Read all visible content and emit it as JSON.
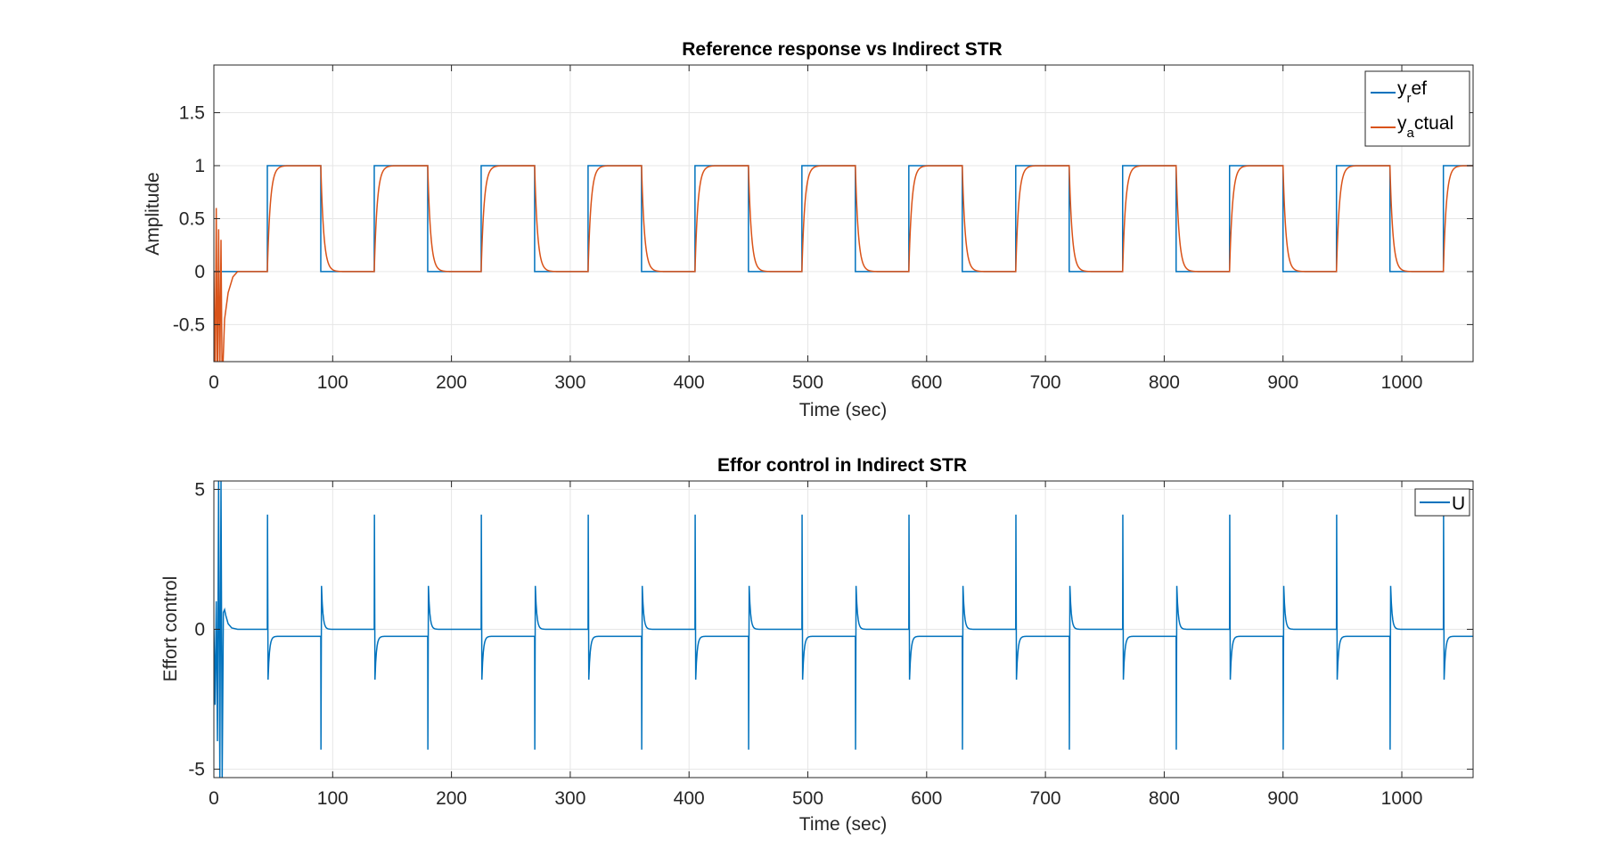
{
  "chart_data": [
    {
      "type": "line",
      "title": "Reference response vs Indirect STR",
      "xlabel": "Time (sec)",
      "ylabel": "Amplitude",
      "xlim": [
        0,
        1060
      ],
      "ylim": [
        -0.85,
        1.95
      ],
      "xticks": [
        0,
        100,
        200,
        300,
        400,
        500,
        600,
        700,
        800,
        900,
        1000
      ],
      "xtick_labels": [
        "0",
        "100",
        "200",
        "300",
        "400",
        "500",
        "600",
        "700",
        "800",
        "900",
        "1000"
      ],
      "yticks": [
        -0.5,
        0,
        0.5,
        1,
        1.5
      ],
      "ytick_labels": [
        "-0.5",
        "0",
        "0.5",
        "1",
        "1.5"
      ],
      "grid": true,
      "legend_position": "top-right",
      "legend": [
        {
          "base": "y",
          "sub": "r",
          "rest": "ef",
          "color": "#0072BD"
        },
        {
          "base": "y",
          "sub": "a",
          "rest": "ctual",
          "color": "#D95319"
        }
      ],
      "series": [
        {
          "name": "y_ref",
          "color": "#0072BD",
          "signal": "square-wave",
          "low": 0,
          "high": 1,
          "rise_times": [
            45,
            135,
            225,
            315,
            405,
            495,
            585,
            675,
            765,
            855,
            945,
            1035
          ],
          "fall_times": [
            90,
            180,
            270,
            360,
            450,
            540,
            630,
            720,
            810,
            900,
            990
          ]
        },
        {
          "name": "y_actual",
          "color": "#D95319",
          "signal": "first-order response to y_ref",
          "time_constant": 2.5,
          "initial_transient": [
            [
              0,
              0
            ],
            [
              1,
              -1.2
            ],
            [
              2,
              0.6
            ],
            [
              3,
              -1.2
            ],
            [
              4,
              0.4
            ],
            [
              5,
              -1.0
            ],
            [
              6,
              0.3
            ],
            [
              7,
              -1.1
            ],
            [
              9,
              -0.45
            ],
            [
              12,
              -0.2
            ],
            [
              16,
              -0.05
            ],
            [
              20,
              0
            ]
          ]
        }
      ]
    },
    {
      "type": "line",
      "title": "Effor control in Indirect STR",
      "xlabel": "Time (sec)",
      "ylabel": "Effort control",
      "xlim": [
        0,
        1060
      ],
      "ylim": [
        -5.3,
        5.3
      ],
      "xticks": [
        0,
        100,
        200,
        300,
        400,
        500,
        600,
        700,
        800,
        900,
        1000
      ],
      "xtick_labels": [
        "0",
        "100",
        "200",
        "300",
        "400",
        "500",
        "600",
        "700",
        "800",
        "900",
        "1000"
      ],
      "yticks": [
        -5,
        0,
        5
      ],
      "ytick_labels": [
        "-5",
        "0",
        "5"
      ],
      "grid": true,
      "legend_position": "top-right",
      "legend": [
        {
          "base": "U",
          "sub": "",
          "rest": "",
          "color": "#0072BD"
        }
      ],
      "series": [
        {
          "name": "U",
          "color": "#0072BD",
          "signal": "impulsive control effort",
          "low_level": -0.25,
          "high_level": 0,
          "rise_times": [
            45,
            135,
            225,
            315,
            405,
            495,
            585,
            675,
            765,
            855,
            945,
            1035
          ],
          "rise_spike": [
            4.1,
            -1.8
          ],
          "fall_times": [
            90,
            180,
            270,
            360,
            450,
            540,
            630,
            720,
            810,
            900,
            990
          ],
          "fall_spike": [
            -4.3,
            1.55
          ],
          "initial_transient": [
            [
              0,
              0
            ],
            [
              1,
              -2.7
            ],
            [
              2,
              1.0
            ],
            [
              3,
              -4.0
            ],
            [
              4,
              5.3
            ],
            [
              5,
              -5.3
            ],
            [
              6,
              5.3
            ],
            [
              7,
              -5.3
            ],
            [
              8,
              0.6
            ],
            [
              9,
              0.7
            ],
            [
              10,
              0.5
            ],
            [
              12,
              0.2
            ],
            [
              15,
              0.05
            ],
            [
              20,
              0
            ],
            [
              44.9,
              0
            ]
          ]
        }
      ]
    }
  ]
}
